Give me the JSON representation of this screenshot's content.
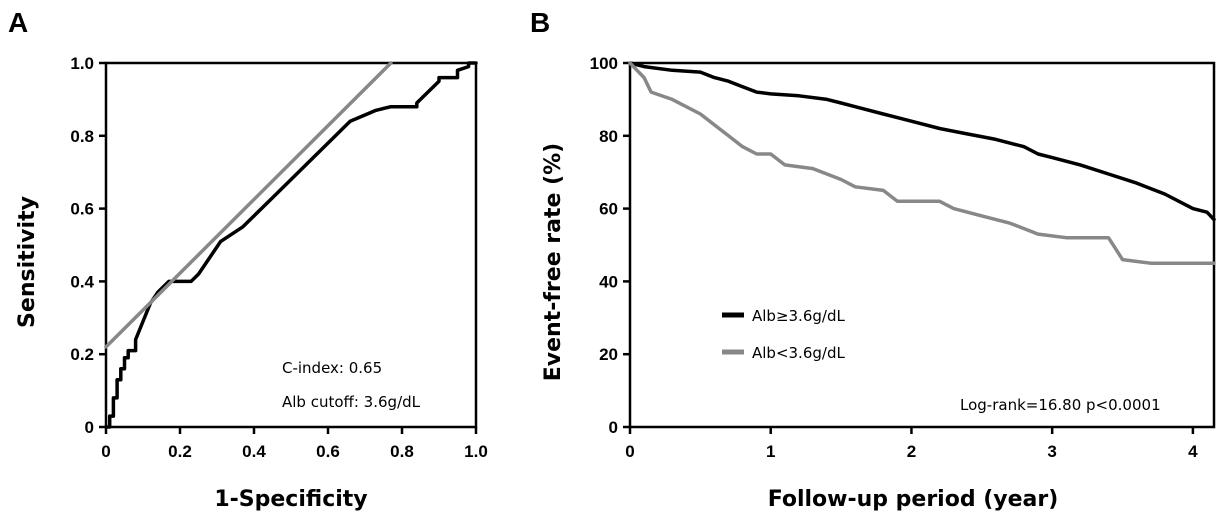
{
  "panels": {
    "a": {
      "letter": "A",
      "annotations": {
        "c_index": "C-index: 0.65",
        "cutoff": "Alb cutoff: 3.6g/dL"
      }
    },
    "b": {
      "letter": "B",
      "annotations": {
        "logrank": "Log-rank=16.80 p<0.0001"
      }
    }
  },
  "colors": {
    "black_series": "#000000",
    "gray_series": "#888888"
  },
  "chart_data": [
    {
      "type": "line",
      "xlabel": "1-Specificity",
      "ylabel": "Sensitivity",
      "xlim": [
        0,
        1.0
      ],
      "ylim": [
        0,
        1.0
      ],
      "xticks": [
        "0",
        "0.2",
        "0.4",
        "0.6",
        "0.8",
        "1.0"
      ],
      "yticks": [
        "0",
        "0.2",
        "0.4",
        "0.6",
        "0.8",
        "1.0"
      ],
      "grid": false,
      "series": [
        {
          "color": "#000000",
          "x": [
            0,
            0.01,
            0.01,
            0.02,
            0.02,
            0.03,
            0.03,
            0.04,
            0.04,
            0.05,
            0.05,
            0.06,
            0.06,
            0.08,
            0.08,
            0.1,
            0.12,
            0.14,
            0.17,
            0.19,
            0.23,
            0.25,
            0.31,
            0.37,
            0.45,
            0.52,
            0.59,
            0.66,
            0.73,
            0.77,
            0.84,
            0.84,
            0.9,
            0.9,
            0.95,
            0.95,
            0.98,
            0.98,
            1.0
          ],
          "y": [
            0,
            0,
            0.03,
            0.03,
            0.08,
            0.08,
            0.13,
            0.13,
            0.16,
            0.16,
            0.19,
            0.19,
            0.21,
            0.21,
            0.24,
            0.29,
            0.34,
            0.37,
            0.4,
            0.4,
            0.4,
            0.42,
            0.51,
            0.55,
            0.63,
            0.7,
            0.77,
            0.84,
            0.87,
            0.88,
            0.88,
            0.89,
            0.95,
            0.96,
            0.96,
            0.98,
            0.99,
            1.0,
            1.0
          ]
        },
        {
          "color": "#888888",
          "x": [
            0,
            0.77
          ],
          "y": [
            0.22,
            1.0
          ]
        }
      ]
    },
    {
      "type": "line",
      "xlabel": "Follow-up period (year)",
      "ylabel": "Event-free rate (%)",
      "xlim": [
        0,
        4.15
      ],
      "ylim": [
        0,
        100
      ],
      "xticks": [
        "0",
        "1",
        "2",
        "3",
        "4"
      ],
      "yticks": [
        "0",
        "20",
        "40",
        "60",
        "80",
        "100"
      ],
      "grid": false,
      "legend_position": "center-left",
      "series": [
        {
          "name": "Alb≥3.6g/dL",
          "color": "#000000",
          "x": [
            0,
            0.1,
            0.3,
            0.5,
            0.6,
            0.7,
            0.8,
            0.9,
            1.0,
            1.2,
            1.4,
            1.5,
            1.6,
            1.8,
            2.0,
            2.2,
            2.4,
            2.6,
            2.8,
            2.9,
            3.0,
            3.2,
            3.4,
            3.6,
            3.8,
            4.0,
            4.1,
            4.15
          ],
          "y": [
            100,
            99,
            98,
            97.5,
            96,
            95,
            93.5,
            92,
            91.5,
            91,
            90,
            89,
            88,
            86,
            84,
            82,
            80.5,
            79,
            77,
            75,
            74,
            72,
            69.5,
            67,
            64,
            60,
            59,
            57
          ]
        },
        {
          "name": "Alb<3.6g/dL",
          "color": "#888888",
          "x": [
            0,
            0.05,
            0.1,
            0.15,
            0.3,
            0.5,
            0.6,
            0.7,
            0.8,
            0.9,
            1.0,
            1.1,
            1.3,
            1.5,
            1.6,
            1.8,
            1.9,
            2.2,
            2.3,
            2.5,
            2.7,
            2.9,
            3.1,
            3.4,
            3.45,
            3.5,
            3.7,
            4.15
          ],
          "y": [
            100,
            98,
            96,
            92,
            90,
            86,
            83,
            80,
            77,
            75,
            75,
            72,
            71,
            68,
            66,
            65,
            62,
            62,
            60,
            58,
            56,
            53,
            52,
            52,
            49,
            46,
            45,
            45
          ]
        }
      ]
    }
  ]
}
